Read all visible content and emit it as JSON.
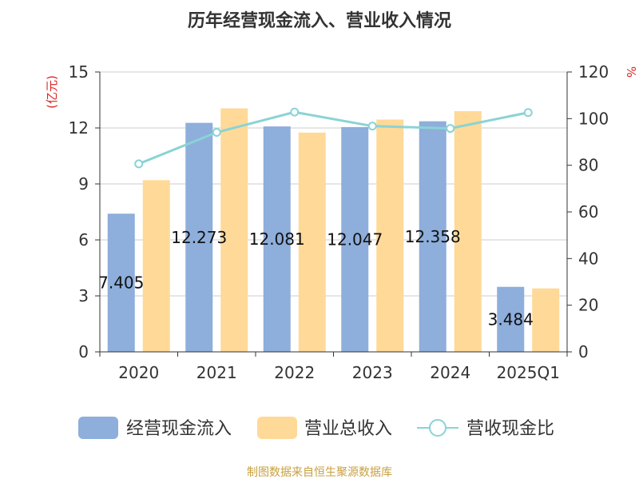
{
  "chart_data": {
    "type": "bar",
    "title": "历年经营现金流入、营业收入情况",
    "categories": [
      "2020",
      "2021",
      "2022",
      "2023",
      "2024",
      "2025Q1"
    ],
    "y_left": {
      "label": "(亿元)",
      "ticks": [
        0,
        3,
        6,
        9,
        12,
        15
      ],
      "range": [
        0,
        15
      ]
    },
    "y_right": {
      "label": "%",
      "ticks": [
        0,
        20,
        40,
        60,
        80,
        100,
        120
      ],
      "range": [
        0,
        120
      ]
    },
    "series": [
      {
        "name": "经营现金流入",
        "type": "bar",
        "axis": "left",
        "color": "#8eaedb",
        "values": [
          7.405,
          12.273,
          12.081,
          12.047,
          12.358,
          3.484
        ],
        "labels": [
          "7.405",
          "12.273",
          "12.081",
          "12.047",
          "12.358",
          "3.484"
        ]
      },
      {
        "name": "营业总收入",
        "type": "bar",
        "axis": "left",
        "color": "#ffd998",
        "values": [
          9.2,
          13.05,
          11.75,
          12.45,
          12.9,
          3.4
        ]
      },
      {
        "name": "营收现金比",
        "type": "line",
        "axis": "right",
        "color": "#8ad3d6",
        "values": [
          80.6,
          94.1,
          102.8,
          96.8,
          95.8,
          102.6
        ]
      }
    ],
    "legend_position": "bottom",
    "grid": true
  },
  "footer": {
    "source": "制图数据来自恒生聚源数据库"
  }
}
